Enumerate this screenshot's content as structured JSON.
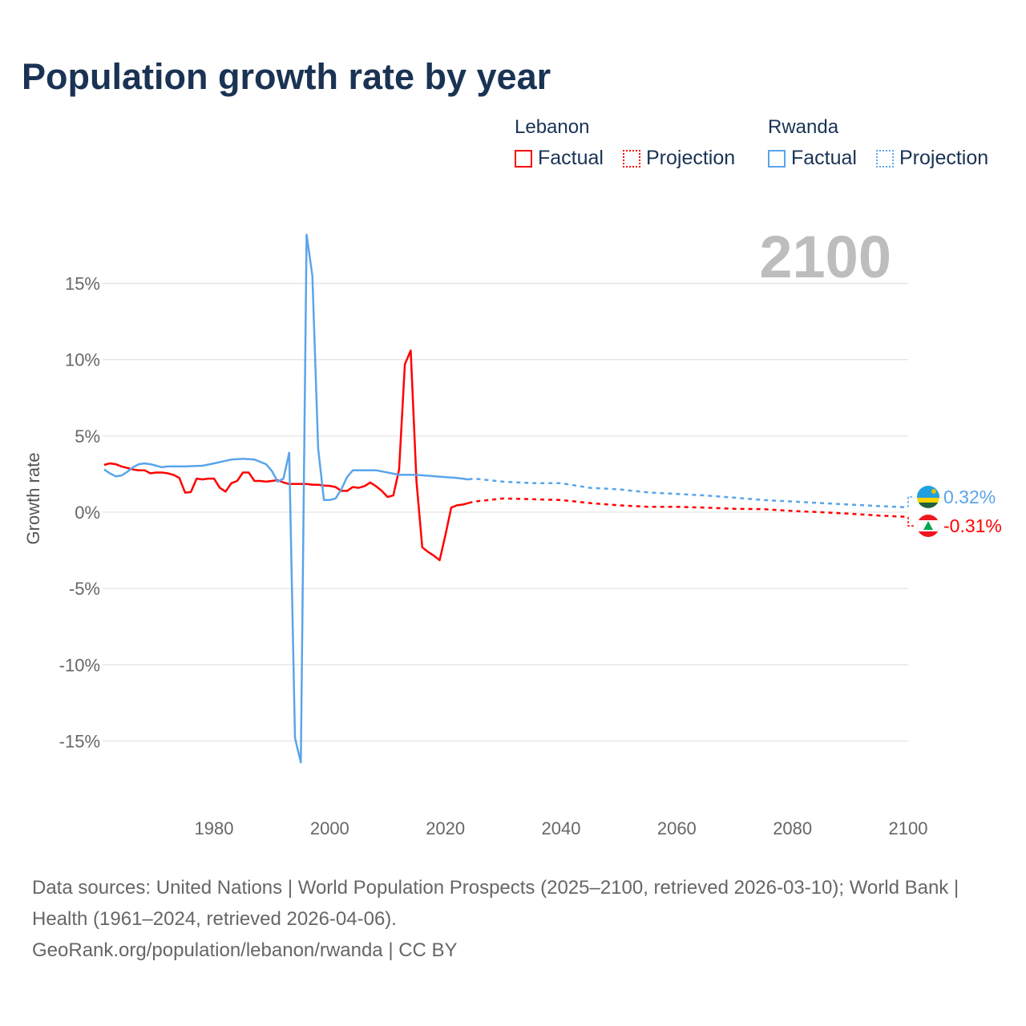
{
  "chart_data": {
    "type": "line",
    "title": "Population growth rate by year",
    "ylabel": "Growth rate",
    "xlabel": "",
    "xlim": [
      1961,
      2100
    ],
    "ylim": [
      -18,
      20
    ],
    "x_ticks": [
      1980,
      2000,
      2020,
      2040,
      2060,
      2080,
      2100
    ],
    "x_tick_labels": [
      "1980",
      "2000",
      "2020",
      "2040",
      "2060",
      "2080",
      "2100"
    ],
    "y_ticks": [
      15,
      10,
      5,
      0,
      -5,
      -10,
      -15
    ],
    "y_tick_labels": [
      "15%",
      "10%",
      "5%",
      "0%",
      "-5%",
      "-10%",
      "-15%"
    ],
    "grid": true,
    "current_year": "2100",
    "legend": {
      "placement": "top-right",
      "groups": [
        {
          "name": "Lebanon",
          "factual": "Factual",
          "projection": "Projection"
        },
        {
          "name": "Rwanda",
          "factual": "Factual",
          "projection": "Projection"
        }
      ]
    },
    "series": [
      {
        "name": "Lebanon",
        "color": "#ff0000",
        "end_label": "-0.31%",
        "factual": {
          "x": [
            1961,
            1962,
            1963,
            1964,
            1965,
            1966,
            1967,
            1968,
            1969,
            1970,
            1971,
            1972,
            1973,
            1974,
            1975,
            1976,
            1977,
            1978,
            1979,
            1980,
            1981,
            1982,
            1983,
            1984,
            1985,
            1986,
            1987,
            1988,
            1989,
            1990,
            1991,
            1992,
            1993,
            1994,
            1995,
            1996,
            1997,
            1998,
            1999,
            2000,
            2001,
            2002,
            2003,
            2004,
            2005,
            2006,
            2007,
            2008,
            2009,
            2010,
            2011,
            2012,
            2013,
            2014,
            2015,
            2016,
            2017,
            2018,
            2019,
            2020,
            2021,
            2022,
            2023,
            2024
          ],
          "y": [
            3.1,
            3.2,
            3.15,
            3.0,
            2.9,
            2.8,
            2.75,
            2.75,
            2.55,
            2.6,
            2.6,
            2.55,
            2.45,
            2.25,
            1.28,
            1.32,
            2.2,
            2.15,
            2.2,
            2.2,
            1.6,
            1.35,
            1.9,
            2.05,
            2.6,
            2.6,
            2.05,
            2.05,
            2.0,
            2.05,
            2.1,
            1.95,
            1.85,
            1.85,
            1.85,
            1.85,
            1.8,
            1.8,
            1.75,
            1.73,
            1.65,
            1.4,
            1.4,
            1.65,
            1.6,
            1.7,
            1.95,
            1.7,
            1.4,
            1.0,
            1.1,
            2.8,
            9.7,
            10.6,
            2.0,
            -2.3,
            -2.6,
            -2.85,
            -3.15,
            -1.5,
            0.3,
            0.45,
            0.5,
            0.6
          ]
        },
        "projection": {
          "x": [
            2024,
            2025,
            2030,
            2035,
            2040,
            2045,
            2050,
            2055,
            2060,
            2065,
            2070,
            2075,
            2080,
            2085,
            2090,
            2095,
            2100
          ],
          "y": [
            0.6,
            0.7,
            0.9,
            0.85,
            0.8,
            0.6,
            0.45,
            0.35,
            0.35,
            0.3,
            0.22,
            0.2,
            0.08,
            0.0,
            -0.1,
            -0.22,
            -0.31
          ]
        }
      },
      {
        "name": "Rwanda",
        "color": "#5aa5ea",
        "end_label": "0.32%",
        "factual": {
          "x": [
            1961,
            1962,
            1963,
            1964,
            1965,
            1966,
            1967,
            1968,
            1969,
            1970,
            1971,
            1972,
            1975,
            1978,
            1980,
            1983,
            1985,
            1987,
            1989,
            1990,
            1991,
            1992,
            1993,
            1994,
            1995,
            1996,
            1997,
            1998,
            1999,
            2000,
            2001,
            2002,
            2003,
            2004,
            2005,
            2008,
            2010,
            2012,
            2015,
            2020,
            2022,
            2024
          ],
          "y": [
            2.8,
            2.55,
            2.35,
            2.4,
            2.65,
            2.95,
            3.15,
            3.2,
            3.15,
            3.05,
            2.95,
            3.0,
            3.0,
            3.05,
            3.2,
            3.45,
            3.5,
            3.45,
            3.15,
            2.7,
            2.0,
            2.2,
            3.9,
            -14.8,
            -16.4,
            18.2,
            15.5,
            4.2,
            0.8,
            0.8,
            0.9,
            1.5,
            2.3,
            2.75,
            2.75,
            2.75,
            2.6,
            2.45,
            2.45,
            2.3,
            2.25,
            2.15
          ]
        },
        "projection": {
          "x": [
            2024,
            2025,
            2030,
            2035,
            2040,
            2045,
            2050,
            2055,
            2060,
            2065,
            2070,
            2075,
            2080,
            2085,
            2090,
            2095,
            2100
          ],
          "y": [
            2.15,
            2.2,
            2.0,
            1.9,
            1.9,
            1.6,
            1.5,
            1.3,
            1.2,
            1.1,
            0.95,
            0.8,
            0.7,
            0.6,
            0.5,
            0.4,
            0.32
          ]
        }
      }
    ]
  },
  "footer": {
    "sources": "Data sources: United Nations | World Population Prospects (2025–2100, retrieved 2026-03-10); World Bank | Health (1961–2024, retrieved 2026-04-06).",
    "link": "GeoRank.org/population/lebanon/rwanda | CC BY"
  }
}
